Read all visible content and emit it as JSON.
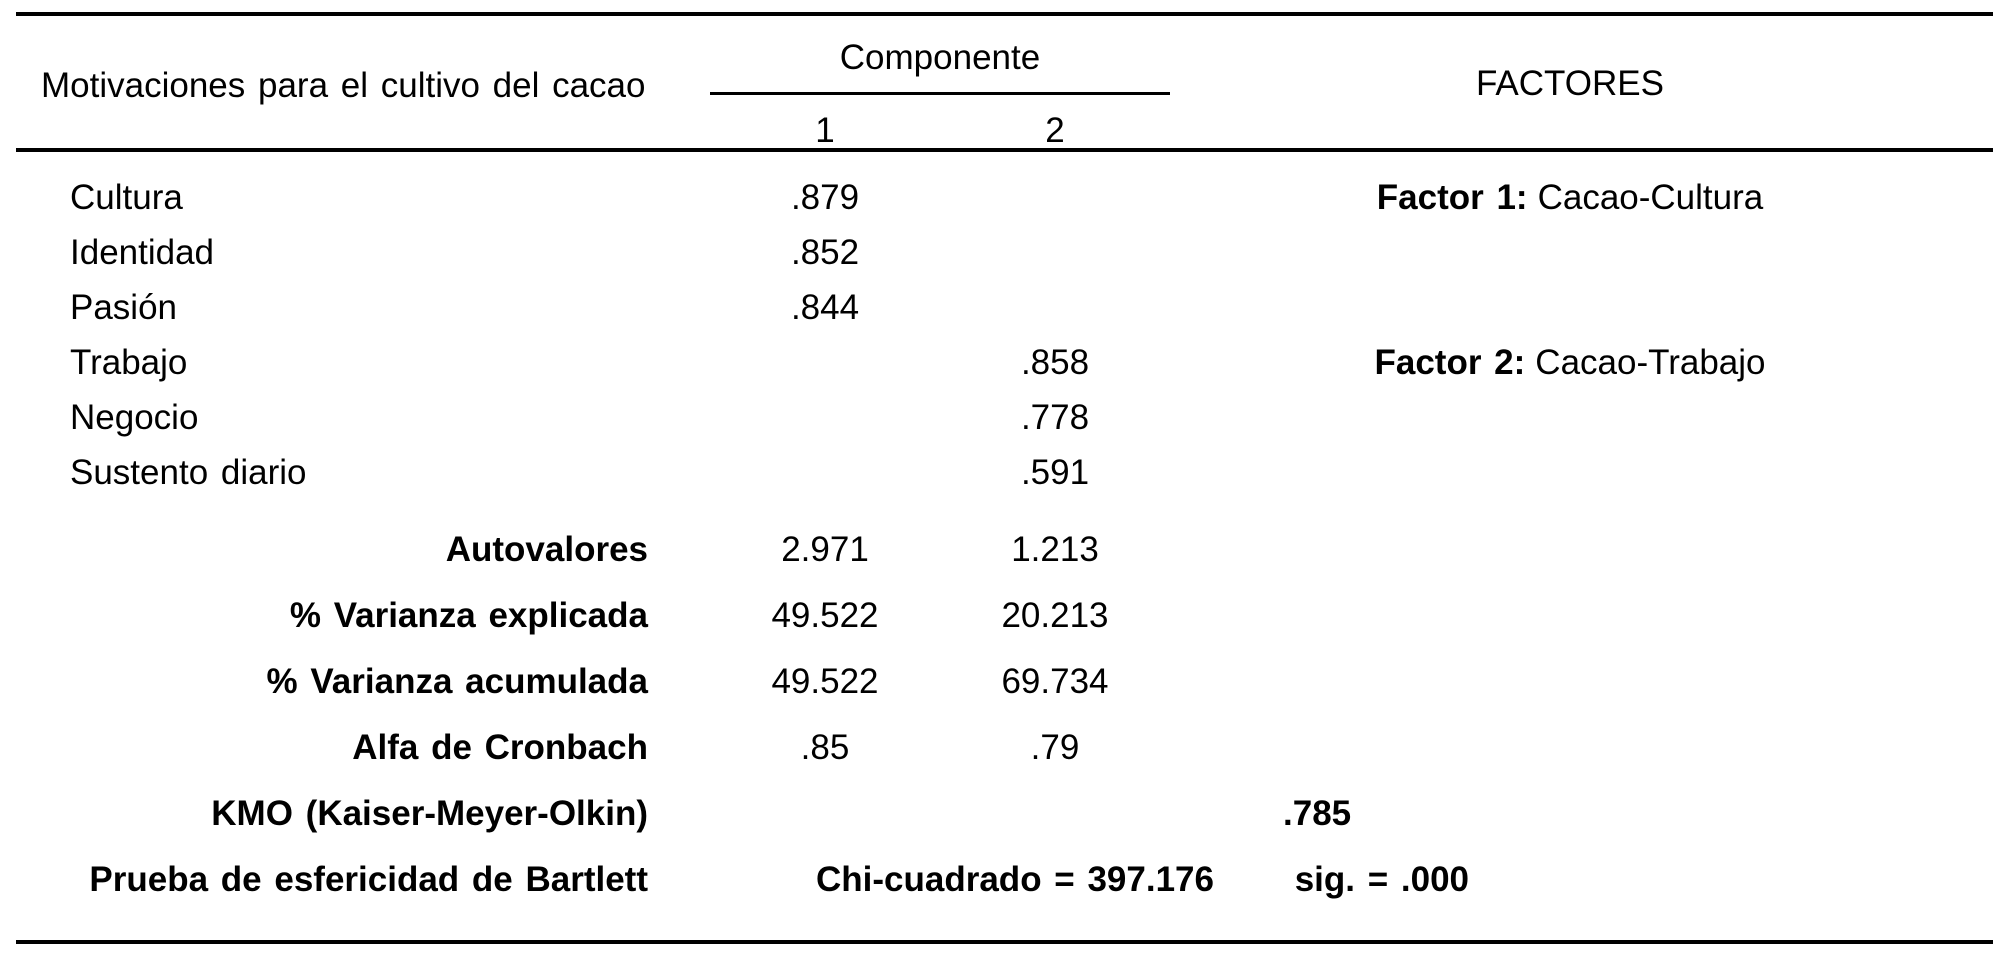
{
  "colors": {
    "text": "#000000",
    "background": "#ffffff"
  },
  "header": {
    "row_label": "Motivaciones para el cultivo del cacao",
    "component_group_label": "Componente",
    "component_1": "1",
    "component_2": "2",
    "factors_label": "FACTORES"
  },
  "variables": [
    {
      "label": "Cultura",
      "c1": ".879",
      "c2": "",
      "factor_title": "Factor 1:",
      "factor_name": "Cacao-Cultura"
    },
    {
      "label": "Identidad",
      "c1": ".852",
      "c2": "",
      "factor_title": "",
      "factor_name": ""
    },
    {
      "label": "Pasión",
      "c1": ".844",
      "c2": "",
      "factor_title": "",
      "factor_name": ""
    },
    {
      "label": "Trabajo",
      "c1": "",
      "c2": ".858",
      "factor_title": "Factor 2:",
      "factor_name": "Cacao-Trabajo"
    },
    {
      "label": "Negocio",
      "c1": "",
      "c2": ".778",
      "factor_title": "",
      "factor_name": ""
    },
    {
      "label": "Sustento diario",
      "c1": "",
      "c2": ".591",
      "factor_title": "",
      "factor_name": ""
    }
  ],
  "statistics": [
    {
      "label": "Autovalores",
      "c1": "2.971",
      "c2": "1.213"
    },
    {
      "label": "% Varianza explicada",
      "c1": "49.522",
      "c2": "20.213"
    },
    {
      "label": "% Varianza acumulada",
      "c1": "49.522",
      "c2": "69.734"
    },
    {
      "label": "Alfa de Cronbach",
      "c1": ".85",
      "c2": ".79"
    }
  ],
  "kmo": {
    "label": "KMO (Kaiser-Meyer-Olkin)",
    "value": ".785"
  },
  "bartlett": {
    "label": "Prueba de esfericidad de Bartlett",
    "chi_square": "Chi-cuadrado = 397.176",
    "significance": "sig. = .000"
  }
}
